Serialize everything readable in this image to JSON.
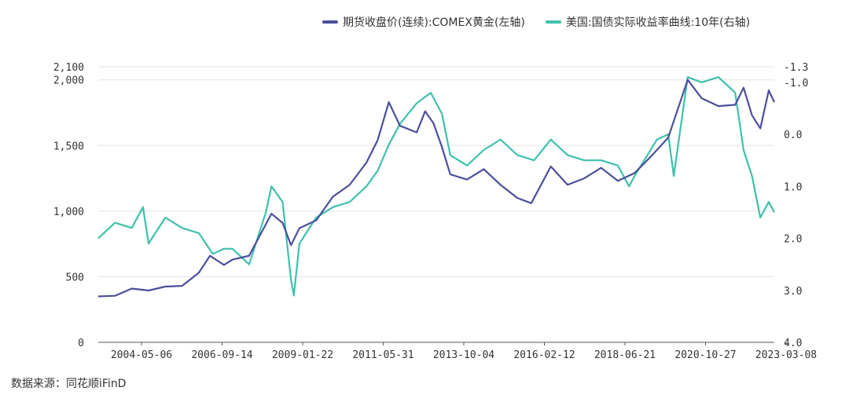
{
  "chart_data": {
    "type": "line",
    "legend": {
      "position": "top",
      "items": [
        {
          "name": "期货收盘价(连续):COMEX黄金(左轴)",
          "color": "#4a4f9c"
        },
        {
          "name": "美国:国债实际收益率曲线:10年(右轴)",
          "color": "#3ec1ad"
        }
      ]
    },
    "x_tick_labels": [
      "2004-05-06",
      "2006-09-14",
      "2009-01-22",
      "2011-05-31",
      "2013-10-04",
      "2016-02-12",
      "2018-06-21",
      "2020-10-27",
      "2023-03-08"
    ],
    "xlim": [
      "2003-01",
      "2023-03"
    ],
    "y_left": {
      "ticks": [
        0,
        500,
        1000,
        1500,
        2000,
        2100
      ],
      "tick_labels": [
        "0",
        "500",
        "1,000",
        "1,500",
        "2,000",
        "2,100"
      ],
      "ylim": [
        0,
        2100
      ]
    },
    "y_right": {
      "inverted": true,
      "ticks": [
        -1.3,
        -1.0,
        0.0,
        1.0,
        2.0,
        3.0,
        4.0
      ],
      "tick_labels": [
        "-1.3",
        "-1.0",
        "0.0",
        "1.0",
        "2.0",
        "3.0",
        "4.0"
      ],
      "ylim": [
        -1.3,
        4.0
      ]
    },
    "grid": "horizontal",
    "series": [
      {
        "name": "期货收盘价(连续):COMEX黄金(左轴)",
        "axis": "left",
        "color": "#4a4f9c",
        "x": [
          "2003-01",
          "2003-07",
          "2004-01",
          "2004-07",
          "2005-01",
          "2005-07",
          "2006-01",
          "2006-05",
          "2006-10",
          "2007-01",
          "2007-07",
          "2008-01",
          "2008-03",
          "2008-07",
          "2008-10",
          "2009-01",
          "2009-07",
          "2010-01",
          "2010-07",
          "2011-01",
          "2011-05",
          "2011-09",
          "2012-01",
          "2012-07",
          "2012-10",
          "2013-01",
          "2013-04",
          "2013-07",
          "2014-01",
          "2014-07",
          "2015-01",
          "2015-07",
          "2015-12",
          "2016-07",
          "2017-01",
          "2017-07",
          "2018-01",
          "2018-07",
          "2019-01",
          "2019-07",
          "2020-01",
          "2020-08",
          "2021-01",
          "2021-07",
          "2022-01",
          "2022-04",
          "2022-07",
          "2022-10",
          "2023-01",
          "2023-03"
        ],
        "values": [
          350,
          355,
          410,
          395,
          425,
          430,
          530,
          660,
          590,
          630,
          660,
          900,
          980,
          910,
          740,
          870,
          930,
          1110,
          1200,
          1370,
          1540,
          1830,
          1650,
          1600,
          1760,
          1670,
          1490,
          1280,
          1240,
          1320,
          1200,
          1100,
          1060,
          1340,
          1200,
          1250,
          1330,
          1230,
          1290,
          1420,
          1560,
          2000,
          1860,
          1800,
          1810,
          1940,
          1730,
          1630,
          1920,
          1830
        ]
      },
      {
        "name": "美国:国债实际收益率曲线:10年(右轴)",
        "axis": "right",
        "color": "#3ec1ad",
        "x": [
          "2003-01",
          "2003-07",
          "2004-01",
          "2004-05",
          "2004-07",
          "2005-01",
          "2005-07",
          "2006-01",
          "2006-06",
          "2006-10",
          "2007-01",
          "2007-07",
          "2008-01",
          "2008-03",
          "2008-07",
          "2008-10",
          "2008-11",
          "2009-01",
          "2009-07",
          "2010-01",
          "2010-07",
          "2011-01",
          "2011-05",
          "2011-09",
          "2012-01",
          "2012-07",
          "2012-12",
          "2013-04",
          "2013-07",
          "2014-01",
          "2014-07",
          "2015-01",
          "2015-07",
          "2016-01",
          "2016-07",
          "2017-01",
          "2017-07",
          "2018-01",
          "2018-07",
          "2018-11",
          "2019-01",
          "2019-09",
          "2020-01",
          "2020-03",
          "2020-08",
          "2021-01",
          "2021-07",
          "2022-01",
          "2022-04",
          "2022-07",
          "2022-10",
          "2023-01",
          "2023-03"
        ],
        "values": [
          2.0,
          1.7,
          1.8,
          1.4,
          2.1,
          1.6,
          1.8,
          1.9,
          2.3,
          2.2,
          2.2,
          2.5,
          1.5,
          1.0,
          1.3,
          2.8,
          3.1,
          2.1,
          1.6,
          1.4,
          1.3,
          1.0,
          0.7,
          0.2,
          -0.2,
          -0.6,
          -0.8,
          -0.4,
          0.4,
          0.6,
          0.3,
          0.1,
          0.4,
          0.5,
          0.1,
          0.4,
          0.5,
          0.5,
          0.6,
          1.0,
          0.8,
          0.1,
          0.0,
          0.8,
          -1.1,
          -1.0,
          -1.1,
          -0.8,
          0.3,
          0.8,
          1.6,
          1.3,
          1.5
        ]
      }
    ]
  },
  "source": "数据来源：同花顺iFinD"
}
